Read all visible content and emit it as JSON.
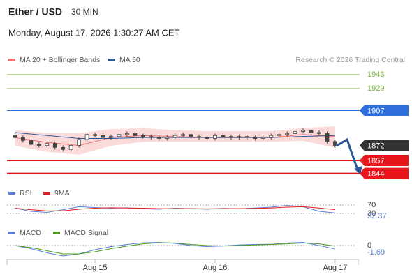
{
  "header": {
    "title": "Ether / USD",
    "interval": "30 MIN",
    "datetime": "Monday, August 17, 2026 1:30:27 AM CET",
    "credit": "Research © 2026 Trading Central"
  },
  "chart_data": [
    {
      "type": "candlestick",
      "x": [
        -16,
        -14.4,
        -12.8,
        -11.2,
        -9.6,
        -8,
        -6.4,
        -4.8,
        -3.2,
        -1.6,
        0,
        1.6,
        3.2,
        4.8,
        6.4,
        8,
        9.6,
        11.2,
        12.8,
        14.4,
        16,
        17.6,
        19.2,
        20.8,
        22.4,
        24,
        25.6,
        27.2,
        28.8,
        30.4,
        32,
        33.6,
        35.2,
        36.8,
        38.4,
        40,
        41.6,
        43.2,
        44.8,
        46.4,
        48
      ],
      "open": [
        1882,
        1880,
        1877,
        1873,
        1872,
        1874,
        1870,
        1868,
        1872,
        1878,
        1883,
        1882,
        1880,
        1881,
        1883,
        1884,
        1882,
        1881,
        1880,
        1879,
        1880,
        1882,
        1883,
        1881,
        1880,
        1879,
        1882,
        1881,
        1880,
        1881,
        1880,
        1879,
        1880,
        1882,
        1883,
        1884,
        1886,
        1887,
        1885,
        1884,
        1876
      ],
      "high": [
        1884,
        1882,
        1879,
        1875,
        1876,
        1876,
        1872,
        1874,
        1880,
        1885,
        1885,
        1884,
        1883,
        1885,
        1886,
        1886,
        1884,
        1883,
        1882,
        1882,
        1884,
        1885,
        1885,
        1883,
        1882,
        1884,
        1884,
        1883,
        1883,
        1883,
        1882,
        1882,
        1884,
        1885,
        1886,
        1888,
        1889,
        1889,
        1887,
        1886,
        1878
      ],
      "low": [
        1878,
        1875,
        1871,
        1870,
        1870,
        1868,
        1866,
        1866,
        1870,
        1876,
        1880,
        1878,
        1878,
        1879,
        1881,
        1880,
        1879,
        1878,
        1877,
        1877,
        1878,
        1880,
        1879,
        1878,
        1877,
        1877,
        1879,
        1878,
        1878,
        1878,
        1877,
        1877,
        1878,
        1880,
        1881,
        1882,
        1884,
        1883,
        1882,
        1874,
        1870
      ],
      "close": [
        1880,
        1877,
        1873,
        1872,
        1874,
        1870,
        1868,
        1872,
        1878,
        1883,
        1882,
        1880,
        1881,
        1883,
        1884,
        1882,
        1881,
        1880,
        1879,
        1880,
        1882,
        1883,
        1881,
        1880,
        1879,
        1882,
        1881,
        1880,
        1881,
        1880,
        1879,
        1880,
        1882,
        1883,
        1884,
        1886,
        1887,
        1885,
        1884,
        1876,
        1872
      ],
      "xlim": [
        -17.6,
        52.2
      ],
      "ylim": [
        1830,
        1950
      ],
      "series": [
        {
          "name": "MA 20 + Bollinger Bands",
          "color": "#f07070",
          "band_color": "#fbdada",
          "x": [
            -16,
            -9.6,
            -3.2,
            3.2,
            9.6,
            16,
            22.4,
            28.8,
            35.2,
            41.6,
            48
          ],
          "values": [
            1880,
            1875,
            1872,
            1880,
            1882,
            1881,
            1880,
            1880,
            1880,
            1883,
            1881
          ],
          "upper": [
            1887,
            1884,
            1884,
            1888,
            1889,
            1887,
            1886,
            1886,
            1886,
            1889,
            1891
          ],
          "lower": [
            1872,
            1866,
            1863,
            1872,
            1876,
            1876,
            1876,
            1876,
            1876,
            1877,
            1870
          ]
        },
        {
          "name": "MA 50",
          "color": "#2b5797",
          "x": [
            -16,
            -9.6,
            -3.2,
            3.2,
            9.6,
            16,
            22.4,
            28.8,
            35.2,
            41.6,
            48
          ],
          "values": [
            1885,
            1882,
            1879,
            1879,
            1880,
            1880,
            1880,
            1880,
            1880,
            1881,
            1882
          ]
        }
      ],
      "levels": [
        {
          "value": 1943,
          "color": "#7cb342",
          "style": "text"
        },
        {
          "value": 1929,
          "color": "#7cb342",
          "style": "text"
        },
        {
          "value": 1907,
          "color": "#2f6fdc",
          "style": "tag"
        },
        {
          "value": 1857,
          "color": "#e8161b",
          "style": "tag"
        },
        {
          "value": 1844,
          "color": "#e8161b",
          "style": "tag"
        }
      ],
      "last_color": "#333333"
    },
    {
      "type": "line",
      "x": [
        -16,
        -12.8,
        -9.6,
        -6.4,
        -3.2,
        0,
        3.2,
        6.4,
        9.6,
        12.8,
        16,
        19.2,
        22.4,
        25.6,
        28.8,
        32,
        35.2,
        38.4,
        41.6,
        44.8,
        48
      ],
      "xlim": [
        -17.6,
        52.2
      ],
      "ylim": [
        0,
        100
      ],
      "yticks": [
        30,
        70
      ],
      "series": [
        {
          "name": "RSI",
          "color": "#5b7fd6",
          "values": [
            55,
            40,
            35,
            48,
            62,
            58,
            55,
            57,
            52,
            50,
            55,
            53,
            50,
            54,
            52,
            56,
            60,
            68,
            62,
            40,
            32.37
          ]
        },
        {
          "name": "9MA",
          "color": "#e02020",
          "values": [
            55,
            48,
            42,
            43,
            50,
            55,
            57,
            56,
            55,
            53,
            53,
            53,
            52,
            53,
            53,
            54,
            56,
            60,
            62,
            56,
            48
          ]
        }
      ]
    },
    {
      "type": "line",
      "x": [
        -16,
        -12.8,
        -9.6,
        -6.4,
        -3.2,
        0,
        3.2,
        6.4,
        9.6,
        12.8,
        16,
        19.2,
        22.4,
        25.6,
        28.8,
        32,
        35.2,
        38.4,
        41.6,
        44.8,
        48
      ],
      "xlim": [
        -17.6,
        52.2
      ],
      "ylim": [
        -6,
        2
      ],
      "yticks": [
        0
      ],
      "xticks": [
        {
          "value": 0,
          "label": "Aug 15"
        },
        {
          "value": 24,
          "label": "Aug 16"
        },
        {
          "value": 48,
          "label": "Aug 17"
        }
      ],
      "series": [
        {
          "name": "MACD",
          "color": "#5b7fd6",
          "values": [
            0,
            -1.5,
            -3.5,
            -5,
            -4,
            -2,
            -0.5,
            0.5,
            1.3,
            1.5,
            1,
            0,
            -0.5,
            -0.2,
            0.3,
            0.5,
            0.6,
            1.2,
            1.5,
            0,
            -1.69
          ]
        },
        {
          "name": "MACD Signal",
          "color": "#4f9a1f",
          "values": [
            0,
            -1,
            -2.5,
            -4,
            -4,
            -3,
            -1.5,
            -0.3,
            0.8,
            1.3,
            1.2,
            0.5,
            0,
            -0.2,
            0,
            0.3,
            0.5,
            0.8,
            1.2,
            0.8,
            -0.3
          ]
        }
      ]
    }
  ]
}
